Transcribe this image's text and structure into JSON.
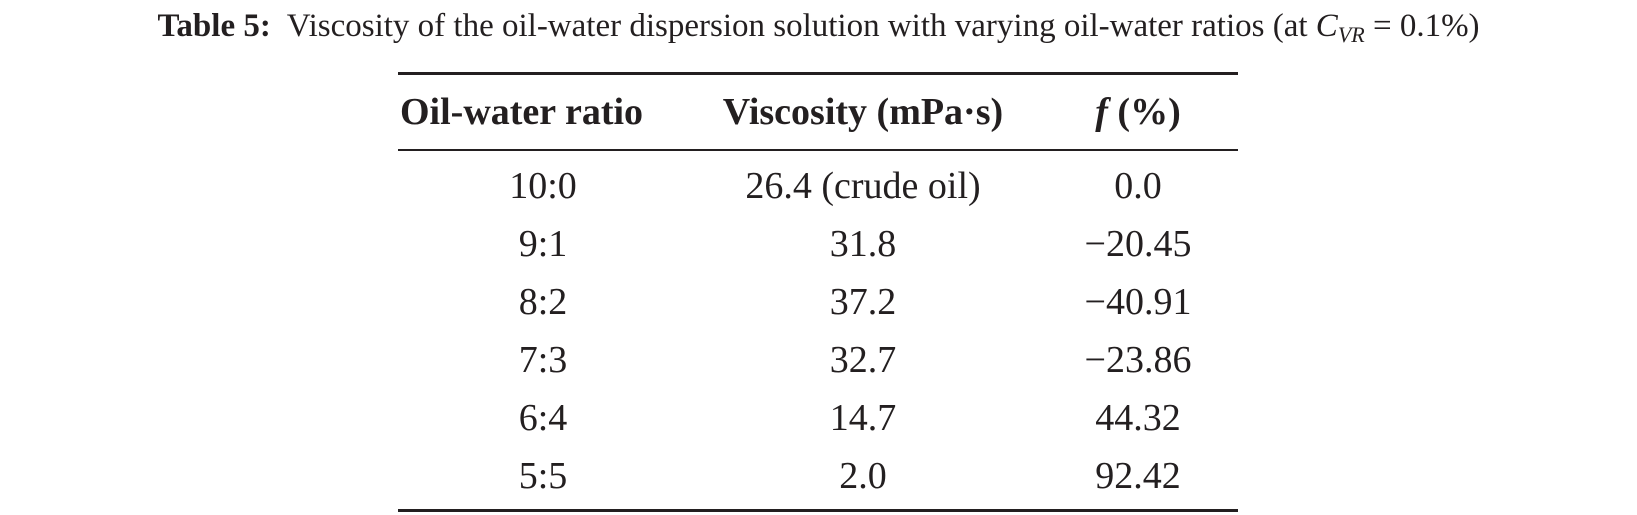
{
  "caption": {
    "label": "Table 5:",
    "text": "Viscosity of the oil-water dispersion solution with varying oil-water ratios (at ",
    "var": "C",
    "var_sub": "VR",
    "text_end": " = 0.1%)"
  },
  "table": {
    "headers": {
      "ratio": "Oil-water ratio",
      "viscosity": "Viscosity (mPa·s)",
      "f_symbol": "f",
      "f_unit": "(%)"
    },
    "rows": [
      {
        "ratio": "10:0",
        "viscosity": "26.4 (crude oil)",
        "f": "0.0"
      },
      {
        "ratio": "9:1",
        "viscosity": "31.8",
        "f": "−20.45"
      },
      {
        "ratio": "8:2",
        "viscosity": "37.2",
        "f": "−40.91"
      },
      {
        "ratio": "7:3",
        "viscosity": "32.7",
        "f": "−23.86"
      },
      {
        "ratio": "6:4",
        "viscosity": "14.7",
        "f": "44.32"
      },
      {
        "ratio": "5:5",
        "viscosity": "2.0",
        "f": "92.42"
      }
    ]
  }
}
